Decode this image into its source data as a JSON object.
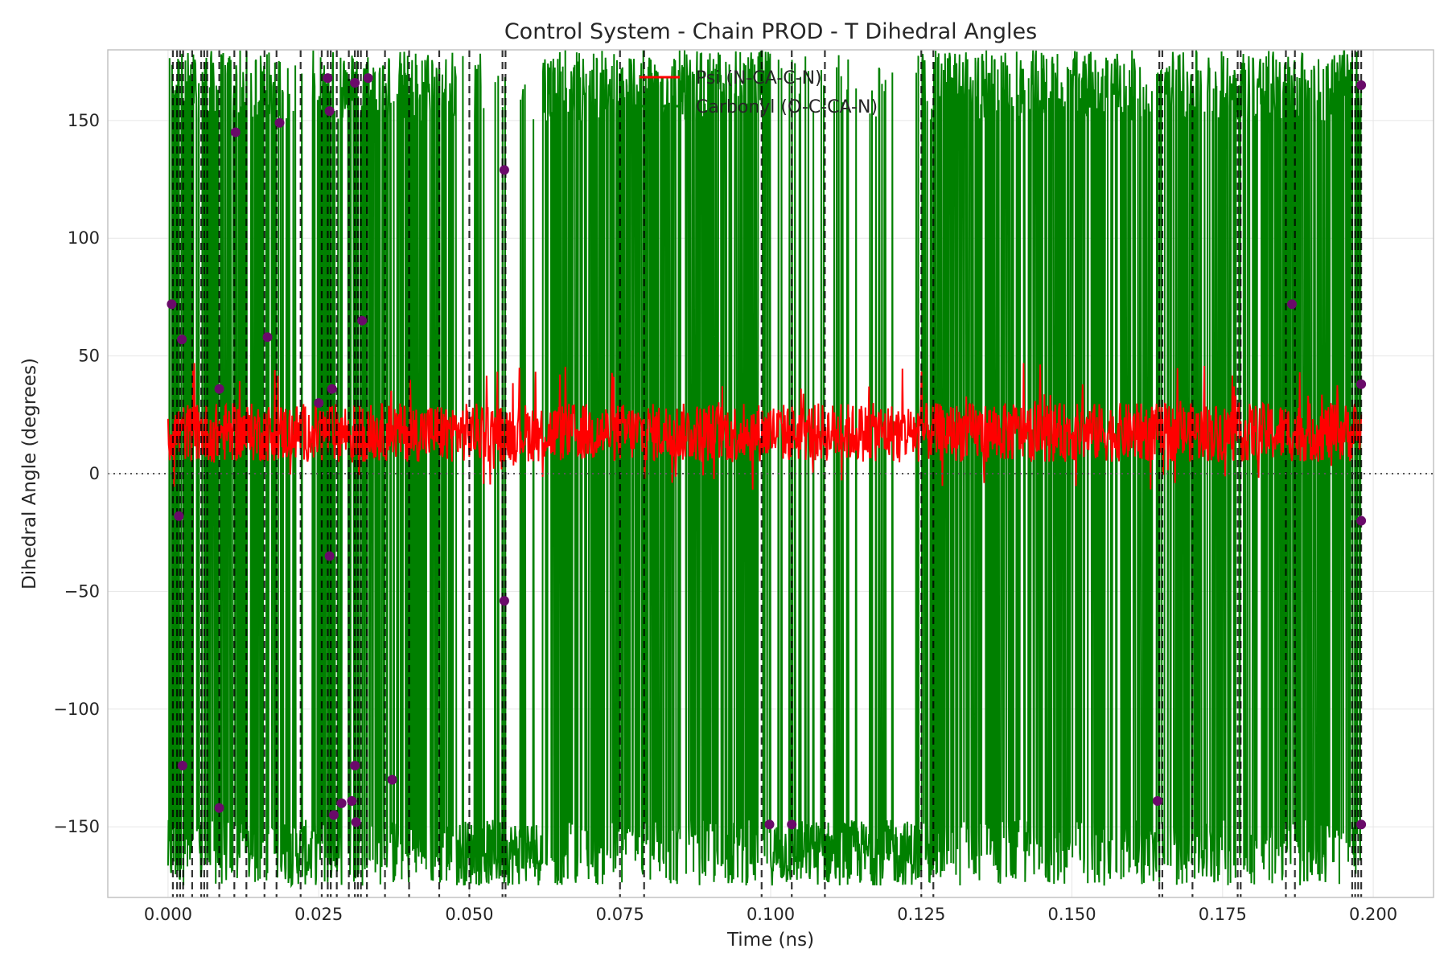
{
  "chart_data": {
    "type": "line",
    "title": "Control System - Chain PROD - T Dihedral Angles",
    "xlabel": "Time (ns)",
    "ylabel": "Dihedral Angle (degrees)",
    "xlim": [
      -0.01,
      0.21
    ],
    "ylim": [
      -180,
      180
    ],
    "x_ticks": [
      0.0,
      0.025,
      0.05,
      0.075,
      0.1,
      0.125,
      0.15,
      0.175,
      0.2
    ],
    "x_tick_labels": [
      "0.000",
      "0.025",
      "0.050",
      "0.075",
      "0.100",
      "0.125",
      "0.150",
      "0.175",
      "0.200"
    ],
    "y_ticks": [
      -150,
      -100,
      -50,
      0,
      50,
      100,
      150
    ],
    "y_tick_labels": [
      "−150",
      "−100",
      "−50",
      "0",
      "50",
      "100",
      "150"
    ],
    "grid": true,
    "legend_position": "top-center",
    "reference_line": {
      "y": 0,
      "style": "dotted",
      "color": "#555555"
    },
    "series": [
      {
        "name": "Psi (N-CA-C-N)",
        "color": "#ff0000",
        "style": "solid",
        "typical_range": [
          5,
          30
        ],
        "x_range": [
          0.0,
          0.198
        ]
      },
      {
        "name": "Carbonyl (O-C-CA-N)",
        "color": "#008000",
        "style": "solid",
        "baseline_range": [
          -180,
          -150
        ],
        "x_range": [
          0.0,
          0.198
        ],
        "dense_flip_intervals": [
          [
            0.0,
            0.02
          ],
          [
            0.024,
            0.048
          ],
          [
            0.062,
            0.1
          ],
          [
            0.127,
            0.163
          ],
          [
            0.164,
            0.198
          ]
        ]
      }
    ],
    "transition_markers": {
      "color": "#000000",
      "style": "dashed",
      "x": [
        0.0008,
        0.0015,
        0.002,
        0.0025,
        0.004,
        0.0055,
        0.006,
        0.0065,
        0.0085,
        0.011,
        0.013,
        0.016,
        0.018,
        0.022,
        0.0255,
        0.0265,
        0.027,
        0.028,
        0.03,
        0.031,
        0.0315,
        0.032,
        0.033,
        0.036,
        0.04,
        0.045,
        0.05,
        0.0555,
        0.056,
        0.075,
        0.079,
        0.0985,
        0.1035,
        0.109,
        0.125,
        0.127,
        0.1645,
        0.165,
        0.17,
        0.1775,
        0.178,
        0.1855,
        0.187,
        0.1965,
        0.197,
        0.1975,
        0.198
      ]
    },
    "event_points": {
      "color": "#6a0a6a",
      "points": [
        [
          0.0006,
          72
        ],
        [
          0.0018,
          -18
        ],
        [
          0.0023,
          57
        ],
        [
          0.0024,
          -124
        ],
        [
          0.0085,
          36
        ],
        [
          0.0085,
          -142
        ],
        [
          0.0112,
          145
        ],
        [
          0.0165,
          58
        ],
        [
          0.0185,
          149
        ],
        [
          0.025,
          30
        ],
        [
          0.0265,
          168
        ],
        [
          0.0268,
          154
        ],
        [
          0.0268,
          -35
        ],
        [
          0.0272,
          36
        ],
        [
          0.0275,
          -145
        ],
        [
          0.0288,
          -140
        ],
        [
          0.0305,
          -139
        ],
        [
          0.031,
          166
        ],
        [
          0.031,
          -124
        ],
        [
          0.0312,
          -148
        ],
        [
          0.0322,
          65
        ],
        [
          0.0332,
          168
        ],
        [
          0.0372,
          -130
        ],
        [
          0.0558,
          129
        ],
        [
          0.0558,
          -54
        ],
        [
          0.0998,
          -149
        ],
        [
          0.1035,
          -149
        ],
        [
          0.1642,
          -139
        ],
        [
          0.1865,
          72
        ],
        [
          0.198,
          165
        ],
        [
          0.198,
          38
        ],
        [
          0.198,
          -20
        ],
        [
          0.198,
          -149
        ]
      ]
    }
  }
}
